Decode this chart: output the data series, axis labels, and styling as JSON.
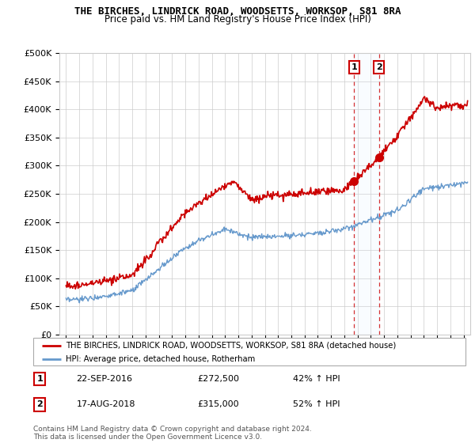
{
  "title": "THE BIRCHES, LINDRICK ROAD, WOODSETTS, WORKSOP, S81 8RA",
  "subtitle": "Price paid vs. HM Land Registry's House Price Index (HPI)",
  "legend_line1": "THE BIRCHES, LINDRICK ROAD, WOODSETTS, WORKSOP, S81 8RA (detached house)",
  "legend_line2": "HPI: Average price, detached house, Rotherham",
  "annotation1_date": "22-SEP-2016",
  "annotation1_price": "£272,500",
  "annotation1_hpi": "42% ↑ HPI",
  "annotation2_date": "17-AUG-2018",
  "annotation2_price": "£315,000",
  "annotation2_hpi": "52% ↑ HPI",
  "copyright": "Contains HM Land Registry data © Crown copyright and database right 2024.\nThis data is licensed under the Open Government Licence v3.0.",
  "sale1_x": 2016.73,
  "sale1_y": 272500,
  "sale2_x": 2018.62,
  "sale2_y": 315000,
  "red_color": "#cc0000",
  "blue_color": "#6699cc",
  "shade_color": "#ddeeff",
  "ylim_min": 0,
  "ylim_max": 500000,
  "xlim_min": 1994.5,
  "xlim_max": 2025.5,
  "yticks": [
    0,
    50000,
    100000,
    150000,
    200000,
    250000,
    300000,
    350000,
    400000,
    450000,
    500000
  ],
  "ytick_labels": [
    "£0",
    "£50K",
    "£100K",
    "£150K",
    "£200K",
    "£250K",
    "£300K",
    "£350K",
    "£400K",
    "£450K",
    "£500K"
  ],
  "xtick_years": [
    1995,
    1996,
    1997,
    1998,
    1999,
    2000,
    2001,
    2002,
    2003,
    2004,
    2005,
    2006,
    2007,
    2008,
    2009,
    2010,
    2011,
    2012,
    2013,
    2014,
    2015,
    2016,
    2017,
    2018,
    2019,
    2020,
    2021,
    2022,
    2023,
    2024,
    2025
  ]
}
